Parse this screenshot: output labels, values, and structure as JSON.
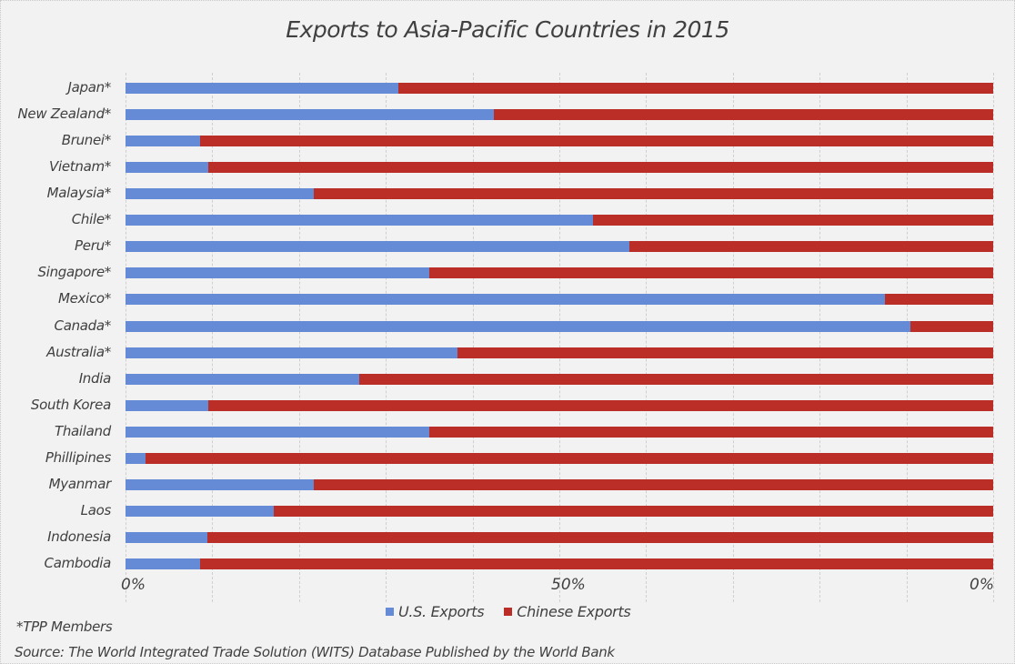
{
  "chart_data": {
    "type": "bar",
    "orientation": "horizontal",
    "stacked": "percent",
    "title": "Exports to Asia-Pacific Countries in 2015",
    "xlabel": "",
    "ylabel": "",
    "xlim": [
      0,
      100
    ],
    "x_tick_labels": [
      "0%",
      "50%",
      "0%"
    ],
    "grid": true,
    "legend_position": "bottom",
    "categories": [
      "Japan*",
      "New Zealand*",
      "Brunei*",
      "Vietnam*",
      "Malaysia*",
      "Chile*",
      "Peru*",
      "Singapore*",
      "Mexico*",
      "Canada*",
      "Australia*",
      "India",
      "South Korea",
      "Thailand",
      "Phillipines",
      "Myanmar",
      "Laos",
      "Indonesia",
      "Cambodia"
    ],
    "series": [
      {
        "name": "U.S. Exports",
        "color": "#668bd6",
        "values": [
          31.4,
          42.5,
          8.6,
          9.5,
          21.7,
          53.9,
          58.1,
          35.0,
          87.5,
          90.5,
          38.3,
          26.9,
          9.5,
          35.0,
          2.3,
          21.7,
          17.1,
          9.4,
          8.6
        ]
      },
      {
        "name": "Chinese Exports",
        "color": "#bb2e28",
        "values": [
          68.6,
          57.5,
          91.4,
          90.5,
          78.3,
          46.1,
          41.9,
          65.0,
          12.5,
          9.5,
          61.7,
          73.1,
          90.5,
          65.0,
          97.7,
          78.3,
          82.9,
          90.6,
          91.4
        ]
      }
    ],
    "annotations": [
      "*TPP Members",
      "Source: The World Integrated Trade Solution (WITS) Database Published by the World Bank"
    ]
  },
  "title": "Exports to Asia-Pacific Countries in 2015",
  "axis": {
    "tick_left": "0%",
    "tick_mid": "50%",
    "tick_right": "0%"
  },
  "legend": {
    "us_label": "U.S. Exports",
    "cn_label": "Chinese Exports",
    "us_color": "#668bd6",
    "cn_color": "#bb2e28"
  },
  "footnotes": {
    "tpp": "*TPP Members",
    "source": "Source: The World Integrated Trade Solution (WITS) Database Published by the World Bank"
  }
}
